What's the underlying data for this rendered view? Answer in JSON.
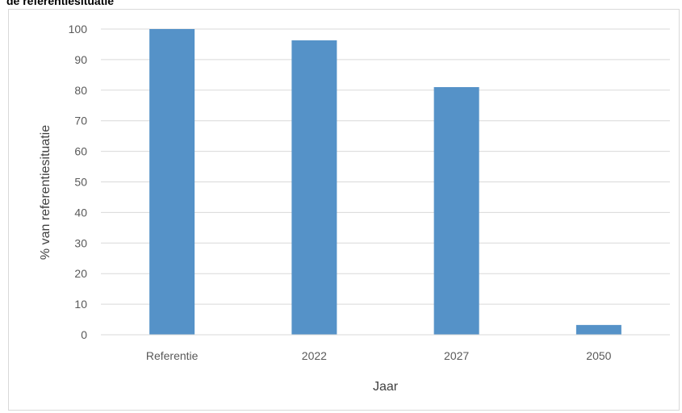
{
  "header": {
    "cut_title": "de referentiesituatie"
  },
  "chart_data": {
    "type": "bar",
    "categories": [
      "Referentie",
      "2022",
      "2027",
      "2050"
    ],
    "values": [
      100,
      96.3,
      81,
      3.2
    ],
    "title": "",
    "xlabel": "Jaar",
    "ylabel": "% van referentiesituatie",
    "ylim": [
      0,
      100
    ],
    "yticks": [
      0,
      10,
      20,
      30,
      40,
      50,
      60,
      70,
      80,
      90,
      100
    ],
    "grid": true,
    "legend": "none",
    "bar_color": "#5592c8",
    "grid_color": "#d9d9d9"
  }
}
